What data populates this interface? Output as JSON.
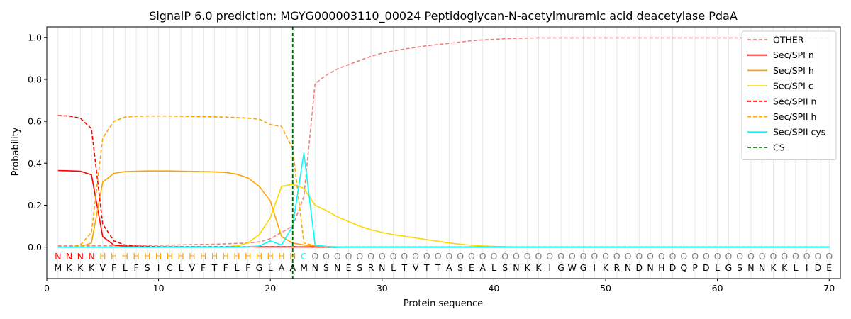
{
  "chart_data": {
    "type": "line",
    "title": "SignalP 6.0 prediction: MGYG000003110_00024 Peptidoglycan-N-acetylmuramic acid deacetylase PdaA",
    "xlabel": "Protein sequence",
    "ylabel": "Probability",
    "xlim": [
      0,
      71
    ],
    "ylim": [
      -0.15,
      1.05
    ],
    "xticks": [
      0,
      10,
      20,
      30,
      40,
      50,
      60,
      70
    ],
    "yticks": [
      0.0,
      0.2,
      0.4,
      0.6,
      0.8,
      1.0
    ],
    "xtick_labels": [
      "0",
      "10",
      "20",
      "30",
      "40",
      "50",
      "60",
      "70"
    ],
    "ytick_labels": [
      "0.0",
      "0.2",
      "0.4",
      "0.6",
      "0.8",
      "1.0"
    ],
    "grid": "vertical lines at each residue position",
    "legend_position": "top-right",
    "cleavage_site": {
      "name": "CS",
      "x": 22,
      "color": "#006400",
      "style": "dashed"
    },
    "sequence": [
      "M",
      "K",
      "K",
      "K",
      "V",
      "F",
      "L",
      "F",
      "S",
      "I",
      "C",
      "L",
      "V",
      "F",
      "T",
      "F",
      "L",
      "F",
      "G",
      "L",
      "A",
      "A",
      "M",
      "N",
      "S",
      "N",
      "E",
      "S",
      "R",
      "N",
      "L",
      "T",
      "V",
      "T",
      "T",
      "A",
      "S",
      "E",
      "A",
      "L",
      "S",
      "N",
      "K",
      "K",
      "I",
      "G",
      "W",
      "G",
      "I",
      "K",
      "R",
      "N",
      "D",
      "N",
      "H",
      "D",
      "Q",
      "P",
      "D",
      "L",
      "G",
      "S",
      "N",
      "N",
      "K",
      "K",
      "L",
      "I",
      "D",
      "E"
    ],
    "region_labels": [
      "N",
      "N",
      "N",
      "N",
      "H",
      "H",
      "H",
      "H",
      "H",
      "H",
      "H",
      "H",
      "H",
      "H",
      "H",
      "H",
      "H",
      "H",
      "H",
      "H",
      "H",
      "H",
      "C",
      "O",
      "O",
      "O",
      "O",
      "O",
      "O",
      "O",
      "O",
      "O",
      "O",
      "O",
      "O",
      "O",
      "O",
      "O",
      "O",
      "O",
      "O",
      "O",
      "O",
      "O",
      "O",
      "O",
      "O",
      "O",
      "O",
      "O",
      "O",
      "O",
      "O",
      "O",
      "O",
      "O",
      "O",
      "O",
      "O",
      "O",
      "O",
      "O",
      "O",
      "O",
      "O",
      "O",
      "O",
      "O",
      "O",
      "O"
    ],
    "region_label_colors": {
      "N": "#ff0000",
      "H": "#ffa500",
      "C": "#00ffff",
      "O": "#808080"
    },
    "series": [
      {
        "name": "OTHER",
        "color": "#f08080",
        "dash": true,
        "values": [
          0.006,
          0.006,
          0.006,
          0.007,
          0.007,
          0.007,
          0.007,
          0.008,
          0.008,
          0.009,
          0.01,
          0.011,
          0.012,
          0.013,
          0.014,
          0.016,
          0.018,
          0.02,
          0.025,
          0.04,
          0.07,
          0.1,
          0.24,
          0.78,
          0.82,
          0.85,
          0.87,
          0.89,
          0.91,
          0.925,
          0.935,
          0.945,
          0.952,
          0.96,
          0.966,
          0.972,
          0.978,
          0.984,
          0.988,
          0.991,
          0.994,
          0.996,
          0.997,
          0.998,
          0.998,
          0.998,
          0.998,
          0.998,
          0.998,
          0.998,
          0.998,
          0.998,
          0.998,
          0.998,
          0.998,
          0.998,
          0.998,
          0.998,
          0.998,
          0.998,
          0.998,
          0.998,
          0.998,
          0.998,
          0.998,
          0.998,
          0.998,
          0.998,
          0.998,
          0.998
        ]
      },
      {
        "name": "Sec/SPI n",
        "color": "#ff0000",
        "dash": false,
        "values": [
          0.365,
          0.364,
          0.362,
          0.345,
          0.05,
          0.01,
          0.004,
          0.002,
          0.001,
          0.001,
          0.001,
          0.001,
          0.001,
          0.001,
          0.001,
          0.001,
          0.001,
          0.001,
          0.001,
          0.001,
          0.001,
          0.001,
          0.001,
          0.001,
          0.0,
          0.0,
          0.0,
          0.0,
          0.0,
          0.0,
          0.0,
          0.0,
          0.0,
          0.0,
          0.0,
          0.0,
          0.0,
          0.0,
          0.0,
          0.0,
          0.0,
          0.0,
          0.0,
          0.0,
          0.0,
          0.0,
          0.0,
          0.0,
          0.0,
          0.0,
          0.0,
          0.0,
          0.0,
          0.0,
          0.0,
          0.0,
          0.0,
          0.0,
          0.0,
          0.0,
          0.0,
          0.0,
          0.0,
          0.0,
          0.0,
          0.0,
          0.0,
          0.0,
          0.0,
          0.0
        ]
      },
      {
        "name": "Sec/SPI h",
        "color": "#ffa500",
        "dash": false,
        "values": [
          0.0,
          0.0,
          0.002,
          0.02,
          0.31,
          0.352,
          0.36,
          0.362,
          0.363,
          0.363,
          0.363,
          0.362,
          0.361,
          0.36,
          0.359,
          0.356,
          0.348,
          0.33,
          0.29,
          0.22,
          0.05,
          0.02,
          0.01,
          0.005,
          0.002,
          0.001,
          0.0,
          0.0,
          0.0,
          0.0,
          0.0,
          0.0,
          0.0,
          0.0,
          0.0,
          0.0,
          0.0,
          0.0,
          0.0,
          0.0,
          0.0,
          0.0,
          0.0,
          0.0,
          0.0,
          0.0,
          0.0,
          0.0,
          0.0,
          0.0,
          0.0,
          0.0,
          0.0,
          0.0,
          0.0,
          0.0,
          0.0,
          0.0,
          0.0,
          0.0,
          0.0,
          0.0,
          0.0,
          0.0,
          0.0,
          0.0,
          0.0,
          0.0,
          0.0,
          0.0
        ]
      },
      {
        "name": "Sec/SPI c",
        "color": "#ffd700",
        "dash": false,
        "values": [
          0.0,
          0.0,
          0.0,
          0.0,
          0.0,
          0.0,
          0.0,
          0.0,
          0.0,
          0.0,
          0.0,
          0.0,
          0.0,
          0.0,
          0.001,
          0.002,
          0.006,
          0.02,
          0.06,
          0.14,
          0.29,
          0.3,
          0.28,
          0.2,
          0.175,
          0.145,
          0.122,
          0.1,
          0.083,
          0.07,
          0.06,
          0.052,
          0.044,
          0.036,
          0.028,
          0.02,
          0.014,
          0.009,
          0.005,
          0.003,
          0.002,
          0.001,
          0.001,
          0.0,
          0.0,
          0.0,
          0.0,
          0.0,
          0.0,
          0.0,
          0.0,
          0.0,
          0.0,
          0.0,
          0.0,
          0.0,
          0.0,
          0.0,
          0.0,
          0.0,
          0.0,
          0.0,
          0.0,
          0.0,
          0.0,
          0.0,
          0.0,
          0.0,
          0.0,
          0.0
        ]
      },
      {
        "name": "Sec/SPII n",
        "color": "#ff0000",
        "dash": true,
        "values": [
          0.627,
          0.625,
          0.615,
          0.565,
          0.11,
          0.03,
          0.01,
          0.005,
          0.003,
          0.002,
          0.002,
          0.002,
          0.002,
          0.002,
          0.002,
          0.002,
          0.002,
          0.002,
          0.002,
          0.002,
          0.002,
          0.002,
          0.001,
          0.0,
          0.0,
          0.0,
          0.0,
          0.0,
          0.0,
          0.0,
          0.0,
          0.0,
          0.0,
          0.0,
          0.0,
          0.0,
          0.0,
          0.0,
          0.0,
          0.0,
          0.0,
          0.0,
          0.0,
          0.0,
          0.0,
          0.0,
          0.0,
          0.0,
          0.0,
          0.0,
          0.0,
          0.0,
          0.0,
          0.0,
          0.0,
          0.0,
          0.0,
          0.0,
          0.0,
          0.0,
          0.0,
          0.0,
          0.0,
          0.0,
          0.0,
          0.0,
          0.0,
          0.0,
          0.0,
          0.0
        ]
      },
      {
        "name": "Sec/SPII h",
        "color": "#ffa500",
        "dash": true,
        "values": [
          0.0,
          0.0,
          0.01,
          0.07,
          0.52,
          0.6,
          0.62,
          0.624,
          0.625,
          0.625,
          0.625,
          0.624,
          0.623,
          0.622,
          0.621,
          0.62,
          0.618,
          0.615,
          0.61,
          0.585,
          0.575,
          0.47,
          0.02,
          0.005,
          0.002,
          0.001,
          0.0,
          0.0,
          0.0,
          0.0,
          0.0,
          0.0,
          0.0,
          0.0,
          0.0,
          0.0,
          0.0,
          0.0,
          0.0,
          0.0,
          0.0,
          0.0,
          0.0,
          0.0,
          0.0,
          0.0,
          0.0,
          0.0,
          0.0,
          0.0,
          0.0,
          0.0,
          0.0,
          0.0,
          0.0,
          0.0,
          0.0,
          0.0,
          0.0,
          0.0,
          0.0,
          0.0,
          0.0,
          0.0,
          0.0,
          0.0,
          0.0,
          0.0,
          0.0,
          0.0
        ]
      },
      {
        "name": "Sec/SPII cys",
        "color": "#00ffff",
        "dash": false,
        "values": [
          0.0,
          0.0,
          0.0,
          0.0,
          0.0,
          0.0,
          0.0,
          0.0,
          0.0,
          0.0,
          0.0,
          0.0,
          0.0,
          0.0,
          0.0,
          0.0,
          0.001,
          0.002,
          0.005,
          0.03,
          0.01,
          0.1,
          0.45,
          0.01,
          0.003,
          0.001,
          0.0,
          0.0,
          0.0,
          0.0,
          0.0,
          0.0,
          0.0,
          0.0,
          0.0,
          0.0,
          0.0,
          0.0,
          0.0,
          0.0,
          0.0,
          0.0,
          0.0,
          0.0,
          0.0,
          0.0,
          0.0,
          0.0,
          0.0,
          0.0,
          0.0,
          0.0,
          0.0,
          0.0,
          0.0,
          0.0,
          0.0,
          0.0,
          0.0,
          0.0,
          0.0,
          0.0,
          0.0,
          0.0,
          0.0,
          0.0,
          0.0,
          0.0,
          0.0,
          0.0
        ]
      }
    ]
  }
}
